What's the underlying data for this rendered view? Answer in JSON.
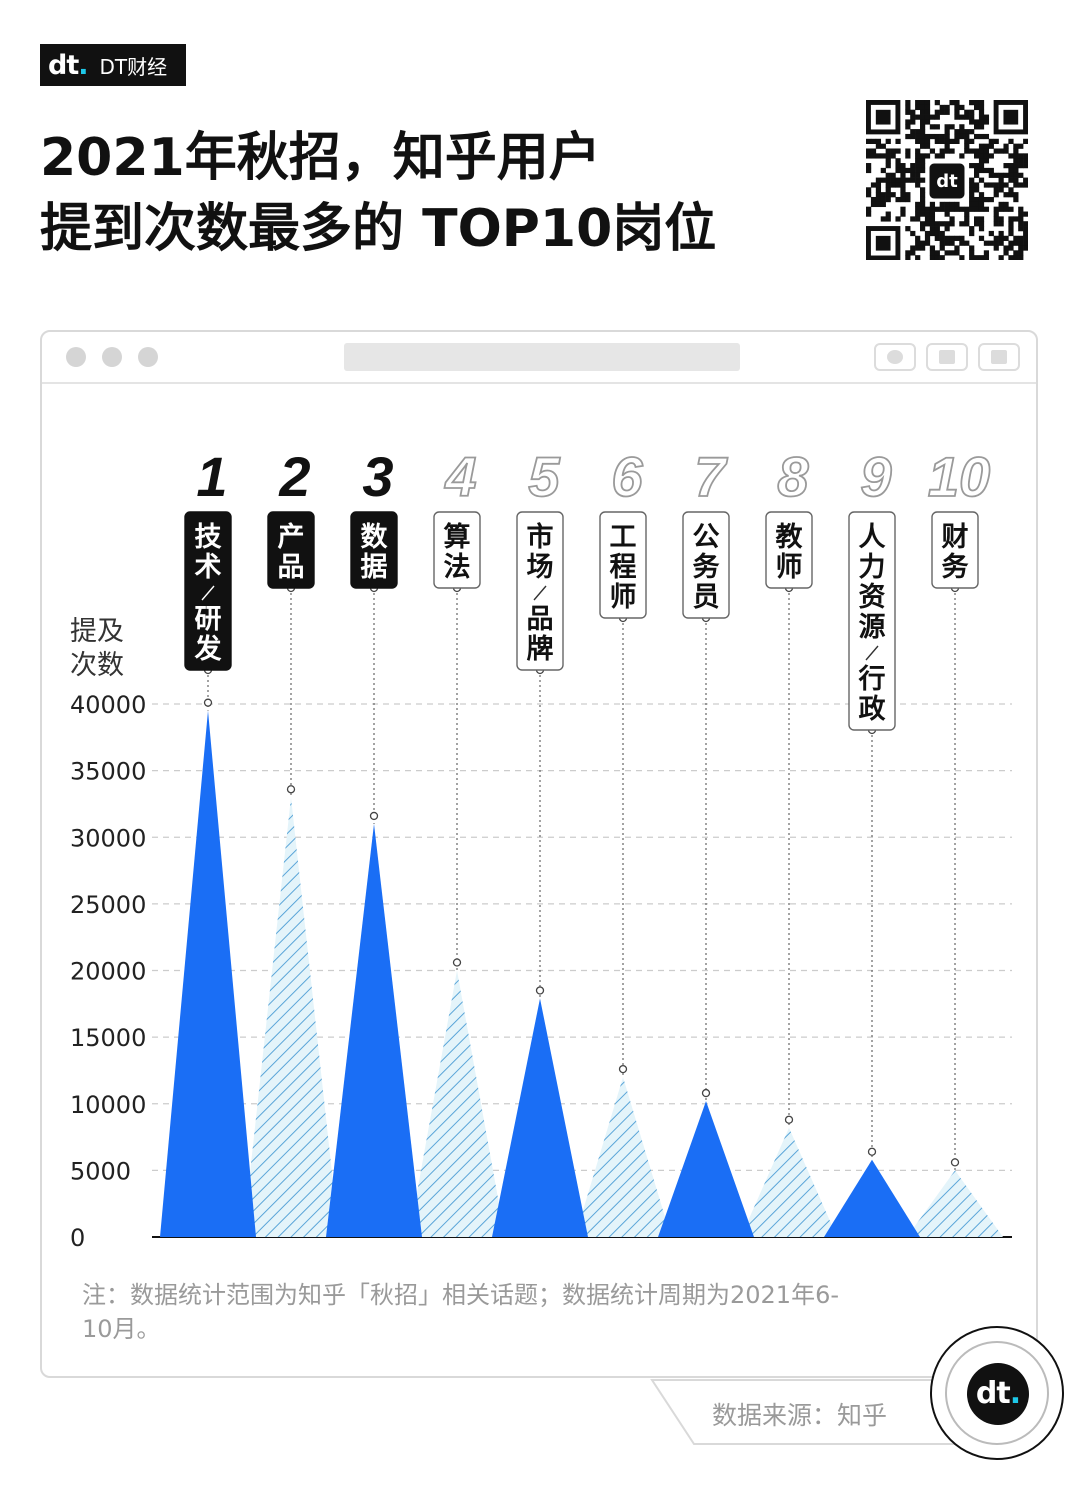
{
  "brand": {
    "mark": "dt",
    "name": "DT财经"
  },
  "title": {
    "line1": "2021年秋招，知乎用户",
    "line2": "提到次数最多的 TOP10岗位"
  },
  "note": "注：数据统计范围为知乎「秋招」相关话题；数据统计周期为2021年6-10月。",
  "source": "数据来源：知乎",
  "colors": {
    "solid": "#1a6ef5",
    "hatch_line": "#5aa5d8",
    "hatch_bg": "#e4f4fa",
    "label_dark": "#111111"
  },
  "chart_data": {
    "type": "area",
    "style": "peaks",
    "ylabel": "提及\n次数",
    "ylim": [
      0,
      40000
    ],
    "yticks": [
      0,
      5000,
      10000,
      15000,
      20000,
      25000,
      30000,
      35000,
      40000
    ],
    "grid": true,
    "categories": [
      "技术/研发",
      "产品",
      "数据",
      "算法",
      "市场/品牌",
      "工程师",
      "公务员",
      "教师",
      "人力资源/行政",
      "财务"
    ],
    "ranks": [
      "1",
      "2",
      "3",
      "4",
      "5",
      "6",
      "7",
      "8",
      "9",
      "10"
    ],
    "values": [
      39500,
      33000,
      31000,
      20000,
      17900,
      12000,
      10200,
      8200,
      5800,
      5000
    ],
    "fill": [
      "solid",
      "hatch",
      "solid",
      "hatch",
      "solid",
      "hatch",
      "solid",
      "hatch",
      "solid",
      "hatch"
    ]
  }
}
